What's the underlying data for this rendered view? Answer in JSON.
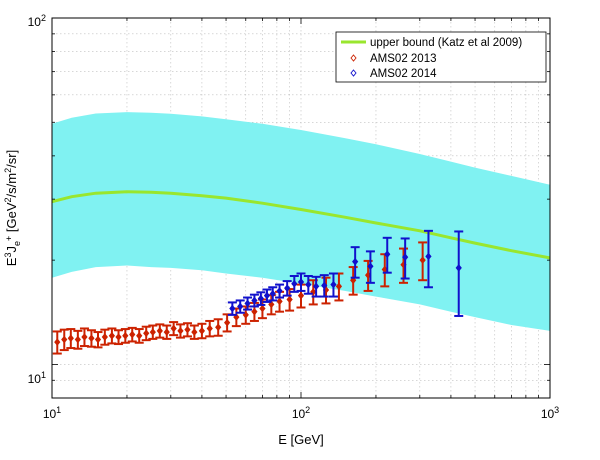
{
  "chart_data": {
    "type": "scatter",
    "xlabel": "E [GeV]",
    "ylabel_main": "E",
    "ylabel_sup1": "3",
    "ylabel_mid": "J",
    "ylabel_sub": "e",
    "ylabel_subsup": "+",
    "ylabel_unit_a": " [GeV",
    "ylabel_unit_sup1": "2",
    "ylabel_unit_b": "/s/m",
    "ylabel_unit_sup2": "2",
    "ylabel_unit_c": "/sr]",
    "x_scale": "log",
    "y_scale": "log",
    "xlim": [
      10,
      1000
    ],
    "ylim": [
      8,
      100
    ],
    "x_ticks": [
      {
        "base": "10",
        "exp": "1",
        "value": 10
      },
      {
        "base": "10",
        "exp": "2",
        "value": 100
      },
      {
        "base": "10",
        "exp": "3",
        "value": 1000
      }
    ],
    "y_ticks": [
      {
        "base": "10",
        "exp": "1",
        "value": 10
      },
      {
        "base": "10",
        "exp": "2",
        "value": 100
      }
    ],
    "grid": true,
    "legend_position": "top-right",
    "legend": [
      {
        "label": "upper bound (Katz et al 2009)",
        "kind": "line"
      },
      {
        "label": "AMS02 2013",
        "kind": "marker-red"
      },
      {
        "label": "AMS02 2014",
        "kind": "marker-blue"
      }
    ],
    "colors": {
      "band": "#80f2f2",
      "upper_bound": "#99e62e",
      "ams2013": "#cc2200",
      "ams2014": "#1111cc",
      "grid": "#bfbfbf"
    },
    "band": {
      "x": [
        10,
        12,
        15,
        20,
        25,
        30,
        40,
        50,
        70,
        100,
        150,
        200,
        300,
        400,
        500,
        700,
        1000
      ],
      "upper": [
        49.5,
        51.5,
        53.0,
        53.5,
        53.3,
        52.9,
        52.0,
        51.0,
        49.5,
        47.5,
        45.0,
        43.2,
        40.5,
        38.5,
        37.0,
        35.0,
        33.0
      ],
      "lower": [
        17.8,
        18.5,
        19.1,
        19.3,
        19.1,
        19.0,
        18.7,
        18.3,
        17.8,
        17.1,
        16.3,
        15.7,
        14.9,
        14.2,
        13.7,
        13.0,
        12.5
      ]
    },
    "upper_bound": {
      "x": [
        10,
        12,
        15,
        20,
        25,
        30,
        40,
        50,
        70,
        100,
        150,
        200,
        300,
        400,
        500,
        700,
        1000
      ],
      "y": [
        29.5,
        30.5,
        31.2,
        31.5,
        31.4,
        31.2,
        30.7,
        30.2,
        29.2,
        28.0,
        26.6,
        25.6,
        24.3,
        23.2,
        22.4,
        21.3,
        20.3
      ]
    },
    "series": [
      {
        "name": "AMS02 2013",
        "x": [
          10.5,
          11.2,
          11.9,
          12.7,
          13.5,
          14.4,
          15.3,
          16.3,
          17.4,
          18.5,
          19.7,
          21.0,
          22.4,
          23.9,
          25.4,
          27.1,
          28.9,
          30.8,
          32.8,
          35.0,
          37.3,
          40.0,
          43.0,
          46.5,
          50.5,
          55.0,
          60.0,
          65.0,
          70.0,
          76.0,
          82.0,
          90.0,
          100,
          112,
          126,
          142,
          162,
          186,
          217,
          258,
          308
        ],
        "y": [
          11.6,
          11.8,
          11.9,
          11.8,
          12.0,
          11.9,
          11.8,
          12.0,
          12.1,
          12.0,
          12.1,
          12.2,
          12.1,
          12.3,
          12.4,
          12.5,
          12.4,
          12.7,
          12.5,
          12.6,
          12.4,
          12.5,
          12.7,
          12.8,
          13.2,
          13.7,
          13.9,
          14.2,
          14.5,
          14.9,
          15.2,
          15.4,
          15.8,
          16.2,
          16.4,
          16.8,
          17.5,
          18.1,
          18.8,
          19.4,
          20.0
        ],
        "yerr": [
          0.85,
          0.8,
          0.75,
          0.7,
          0.7,
          0.65,
          0.6,
          0.6,
          0.6,
          0.55,
          0.55,
          0.55,
          0.55,
          0.55,
          0.55,
          0.55,
          0.55,
          0.55,
          0.55,
          0.55,
          0.55,
          0.6,
          0.65,
          0.7,
          0.75,
          0.8,
          0.8,
          0.85,
          0.9,
          0.95,
          1.0,
          1.1,
          1.2,
          1.3,
          1.4,
          1.5,
          1.6,
          1.8,
          2.0,
          2.2,
          2.5
        ]
      },
      {
        "name": "AMS02 2014",
        "x": [
          53,
          57,
          61,
          65,
          69,
          73,
          77,
          82,
          88,
          94,
          100,
          107,
          115,
          124,
          135,
          165,
          190,
          222,
          262,
          325,
          430
        ],
        "y": [
          14.5,
          14.7,
          15.0,
          15.3,
          15.5,
          15.8,
          16.0,
          16.3,
          16.6,
          17.1,
          17.3,
          17.0,
          16.8,
          16.9,
          17.0,
          19.8,
          19.2,
          20.8,
          20.4,
          20.5,
          19.0
        ],
        "yerr": [
          0.6,
          0.6,
          0.6,
          0.6,
          0.65,
          0.65,
          0.7,
          0.7,
          0.8,
          0.9,
          1.0,
          1.0,
          1.1,
          1.2,
          1.3,
          2.0,
          2.0,
          2.4,
          2.7,
          3.8,
          5.2
        ]
      }
    ]
  }
}
